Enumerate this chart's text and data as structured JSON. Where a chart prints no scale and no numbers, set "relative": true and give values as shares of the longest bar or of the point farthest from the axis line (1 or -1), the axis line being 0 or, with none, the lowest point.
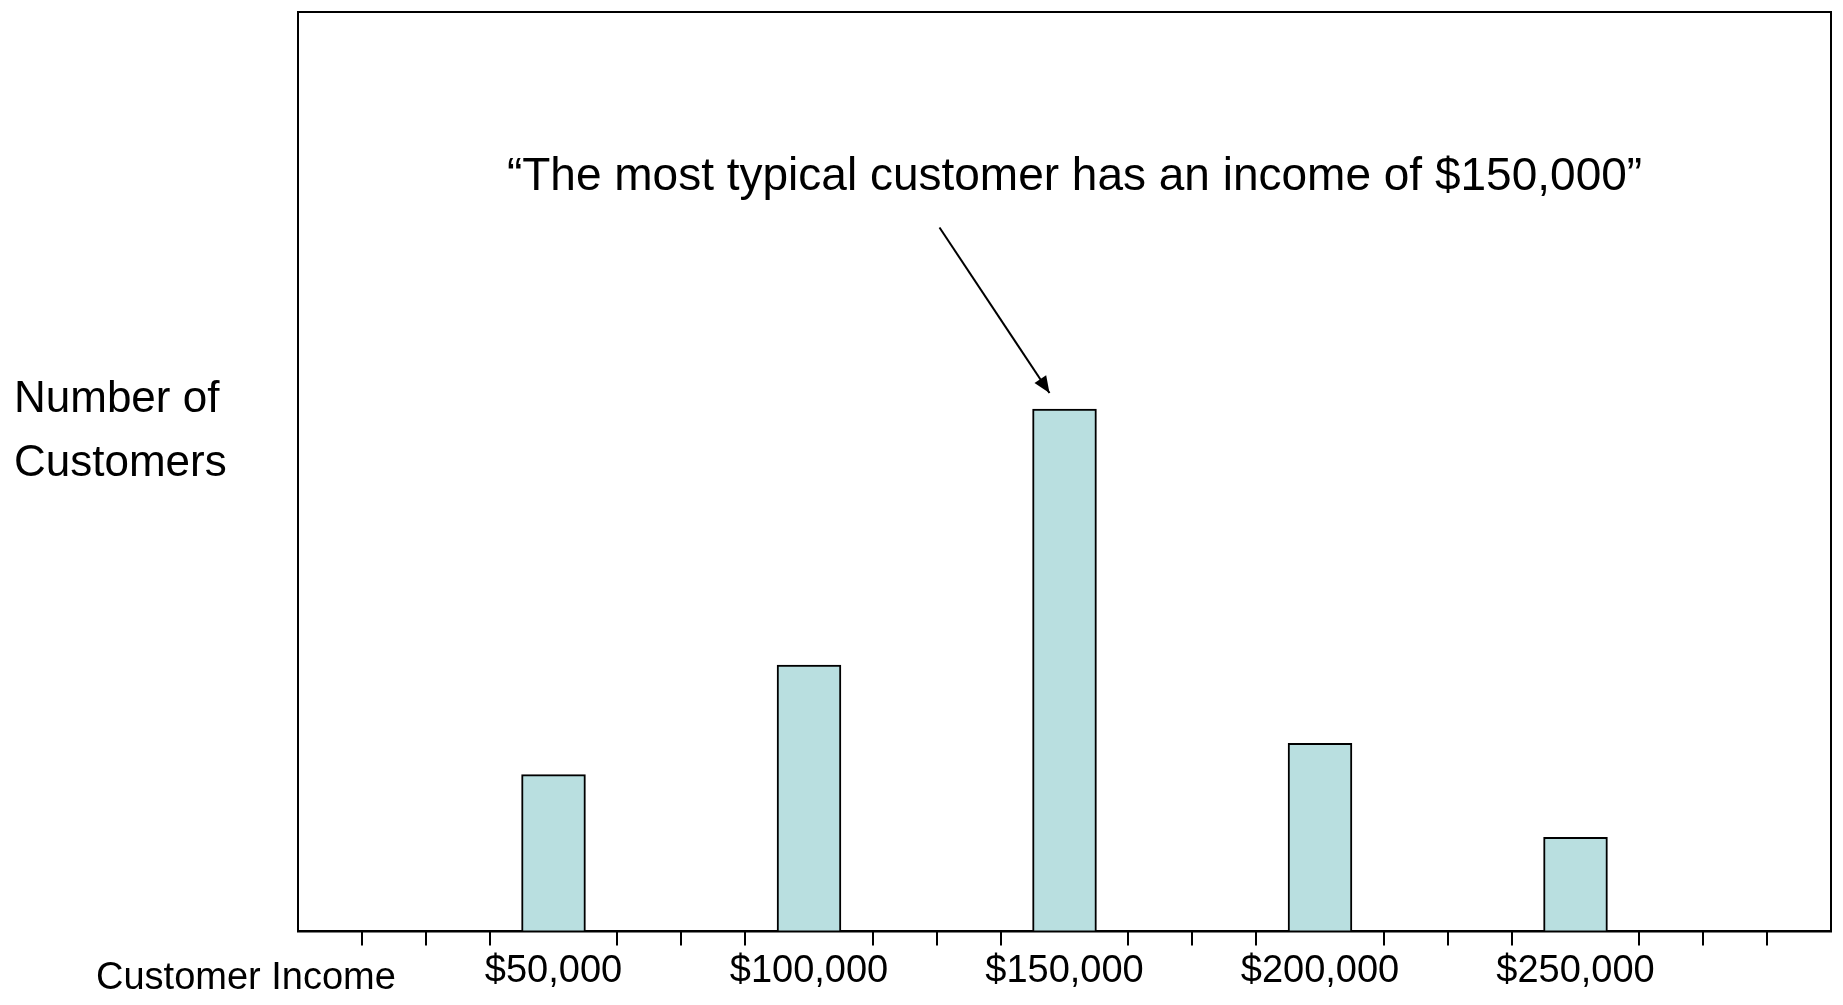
{
  "chart_data": {
    "type": "bar",
    "xlabel": "Customer Income",
    "ylabel": "Number of\nCustomers",
    "relative": true,
    "x": [
      50000,
      100000,
      150000,
      200000,
      250000
    ],
    "values": [
      0.3,
      0.51,
      1,
      0.36,
      0.18
    ],
    "color": "#b9dfe0",
    "xlim": [
      0,
      300000
    ],
    "xticks": [
      {
        "value": 12500,
        "label": null
      },
      {
        "value": 25000,
        "label": null
      },
      {
        "value": 37500,
        "label": null
      },
      {
        "value": 50000,
        "label": "$50,000"
      },
      {
        "value": 62500,
        "label": null
      },
      {
        "value": 75000,
        "label": null
      },
      {
        "value": 87500,
        "label": null
      },
      {
        "value": 100000,
        "label": "$100,000"
      },
      {
        "value": 112500,
        "label": null
      },
      {
        "value": 125000,
        "label": null
      },
      {
        "value": 137500,
        "label": null
      },
      {
        "value": 150000,
        "label": "$150,000"
      },
      {
        "value": 162500,
        "label": null
      },
      {
        "value": 175000,
        "label": null
      },
      {
        "value": 187500,
        "label": null
      },
      {
        "value": 200000,
        "label": "$200,000"
      },
      {
        "value": 212500,
        "label": null
      },
      {
        "value": 225000,
        "label": null
      },
      {
        "value": 237500,
        "label": null
      },
      {
        "value": 250000,
        "label": "$250,000"
      },
      {
        "value": 262500,
        "label": null
      },
      {
        "value": 275000,
        "label": null
      },
      {
        "value": 287500,
        "label": null
      }
    ],
    "annotations": [
      "“The most typical customer has an income of $150,000”"
    ],
    "grid": false,
    "legend": false
  }
}
